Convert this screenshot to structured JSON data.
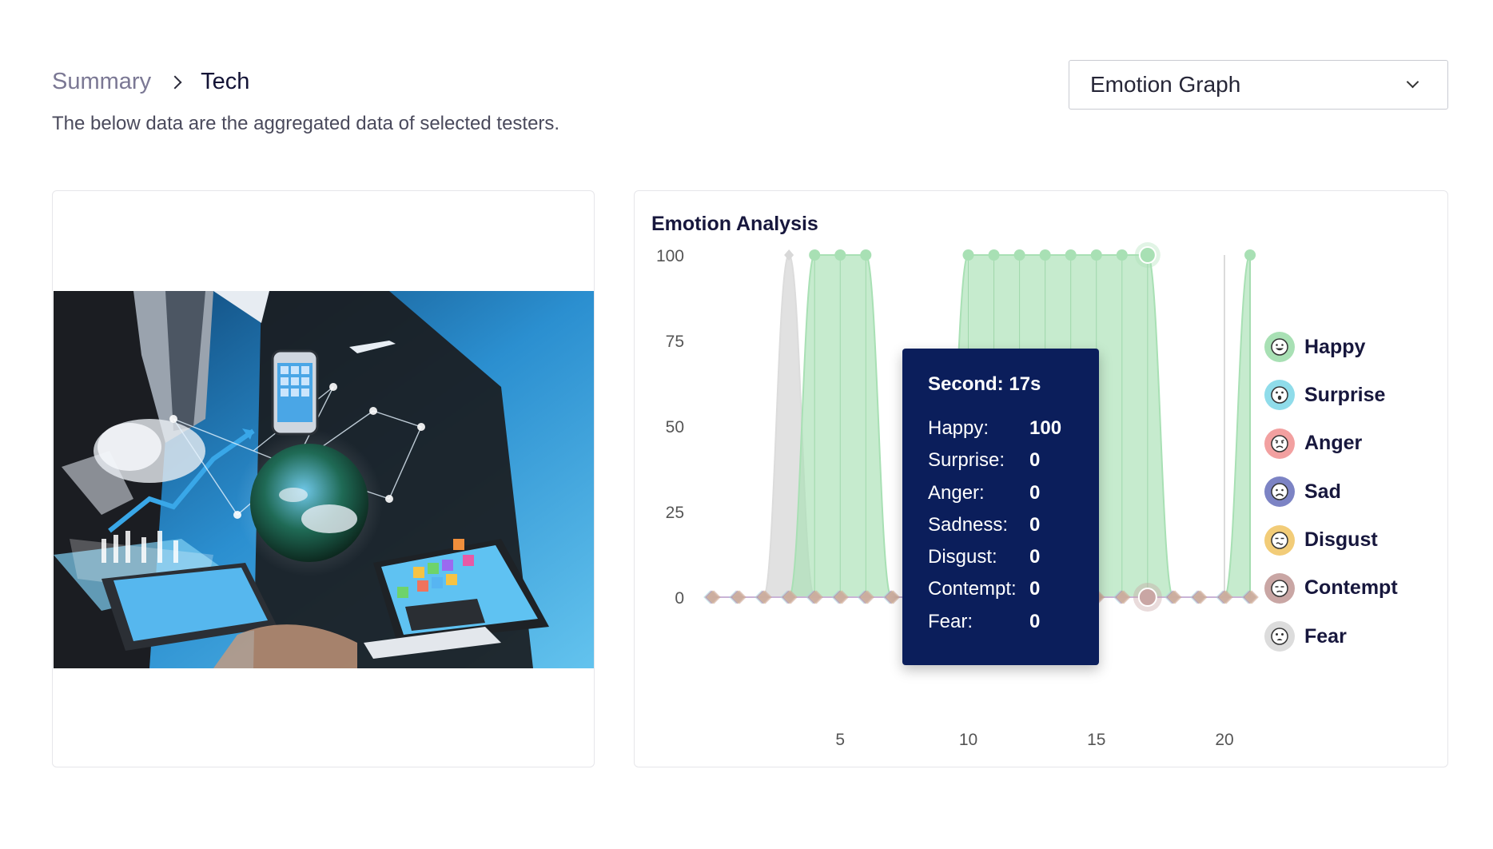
{
  "breadcrumb": {
    "root": "Summary",
    "current": "Tech"
  },
  "subtitle": "The below data are the aggregated data of selected testers.",
  "select": {
    "value": "Emotion Graph",
    "icon": "chevron-down-icon"
  },
  "image": {
    "description_icon": "tech-collage-image"
  },
  "chart": {
    "title": "Emotion Analysis",
    "tooltip": {
      "header": "Second: 17s",
      "rows": [
        {
          "name": "Happy:",
          "value": "100"
        },
        {
          "name": "Surprise:",
          "value": "0"
        },
        {
          "name": "Anger:",
          "value": "0"
        },
        {
          "name": "Sadness:",
          "value": "0"
        },
        {
          "name": "Disgust:",
          "value": "0"
        },
        {
          "name": "Contempt:",
          "value": "0"
        },
        {
          "name": "Fear:",
          "value": "0"
        }
      ]
    },
    "legend": [
      {
        "label": "Happy",
        "icon": "happy-face-icon",
        "color": "#a8e0b4"
      },
      {
        "label": "Surprise",
        "icon": "surprise-face-icon",
        "color": "#8fdcea"
      },
      {
        "label": "Anger",
        "icon": "anger-face-icon",
        "color": "#f2a0a0"
      },
      {
        "label": "Sad",
        "icon": "sad-face-icon",
        "color": "#7c83c4"
      },
      {
        "label": "Disgust",
        "icon": "disgust-face-icon",
        "color": "#f2cc78"
      },
      {
        "label": "Contempt",
        "icon": "contempt-face-icon",
        "color": "#c9a6a4"
      },
      {
        "label": "Fear",
        "icon": "fear-face-icon",
        "color": "#dcdcdc"
      }
    ]
  },
  "chart_data": {
    "type": "area",
    "title": "Emotion Analysis",
    "xlabel": "",
    "ylabel": "",
    "ylim": [
      0,
      100
    ],
    "yticks": [
      0,
      25,
      50,
      75,
      100
    ],
    "xticks": [
      5,
      10,
      15,
      20
    ],
    "x": [
      0,
      1,
      2,
      3,
      4,
      5,
      6,
      7,
      8,
      9,
      10,
      11,
      12,
      13,
      14,
      15,
      16,
      17,
      18,
      19,
      20,
      21
    ],
    "series": [
      {
        "name": "Happy",
        "color": "#a8e0b4",
        "values": [
          0,
          0,
          0,
          0,
          100,
          100,
          100,
          0,
          0,
          0,
          100,
          100,
          100,
          100,
          100,
          100,
          100,
          100,
          0,
          0,
          0,
          100
        ]
      },
      {
        "name": "Surprise",
        "color": "#8fdcea",
        "values": [
          0,
          0,
          0,
          0,
          0,
          0,
          0,
          0,
          0,
          0,
          0,
          0,
          0,
          0,
          0,
          0,
          0,
          0,
          0,
          0,
          0,
          0
        ]
      },
      {
        "name": "Anger",
        "color": "#f2a0a0",
        "values": [
          0,
          0,
          0,
          0,
          0,
          0,
          0,
          0,
          0,
          0,
          0,
          0,
          0,
          0,
          0,
          0,
          0,
          0,
          0,
          0,
          0,
          0
        ]
      },
      {
        "name": "Sad",
        "color": "#7c83c4",
        "values": [
          0,
          0,
          0,
          0,
          0,
          0,
          0,
          0,
          0,
          0,
          0,
          0,
          0,
          0,
          0,
          0,
          0,
          0,
          0,
          0,
          0,
          0
        ]
      },
      {
        "name": "Disgust",
        "color": "#f2cc78",
        "values": [
          0,
          0,
          0,
          0,
          0,
          0,
          0,
          0,
          0,
          0,
          0,
          0,
          0,
          0,
          0,
          0,
          0,
          0,
          0,
          0,
          0,
          0
        ]
      },
      {
        "name": "Contempt",
        "color": "#c9a6a4",
        "values": [
          0,
          0,
          0,
          0,
          0,
          0,
          0,
          0,
          0,
          0,
          0,
          0,
          0,
          0,
          0,
          0,
          0,
          0,
          0,
          0,
          0,
          0
        ]
      },
      {
        "name": "Fear",
        "color": "#dcdcdc",
        "values": [
          0,
          0,
          0,
          100,
          0,
          0,
          0,
          0,
          0,
          0,
          0,
          0,
          0,
          0,
          0,
          0,
          0,
          0,
          0,
          0,
          0,
          0
        ]
      }
    ],
    "highlight_x": 17,
    "legend_position": "right",
    "grid": false
  }
}
